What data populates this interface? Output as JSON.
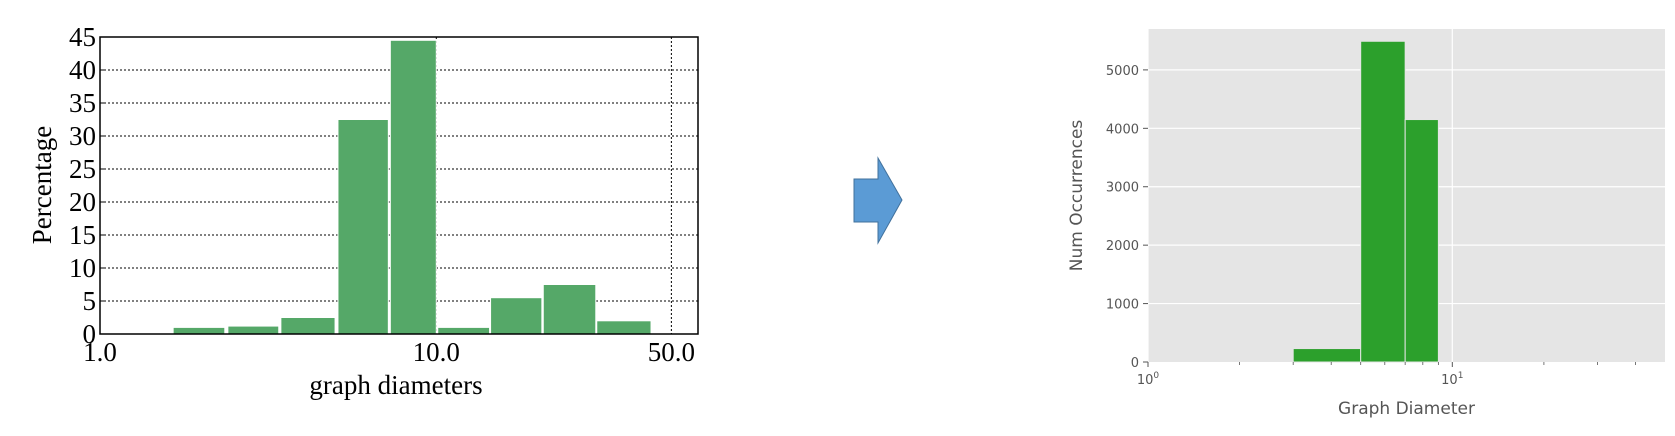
{
  "colors": {
    "left_bar": "#55a868",
    "right_bar": "#2ca02c",
    "arrow_fill": "#5b9bd5",
    "arrow_stroke": "#41719c",
    "right_bg": "#e5e5e5"
  },
  "chart_data": [
    {
      "type": "bar",
      "xscale": "log",
      "xlabel": "graph diameters",
      "ylabel": "Percentage",
      "xlim": [
        1.0,
        60.0
      ],
      "ylim": [
        0,
        45
      ],
      "x_ticks": [
        1.0,
        10.0,
        50.0
      ],
      "x_tick_labels": [
        "1.0",
        "10.0",
        "50.0"
      ],
      "y_ticks": [
        0,
        5,
        10,
        15,
        20,
        25,
        30,
        35,
        40,
        45
      ],
      "y_tick_labels": [
        "0",
        "5",
        "10",
        "15",
        "20",
        "25",
        "30",
        "35",
        "40",
        "45"
      ],
      "grid": "dotted",
      "bars": [
        {
          "x0": 1.65,
          "x1": 2.35,
          "value": 1.0
        },
        {
          "x0": 2.4,
          "x1": 3.4,
          "value": 1.2
        },
        {
          "x0": 3.45,
          "x1": 5.0,
          "value": 2.5
        },
        {
          "x0": 5.1,
          "x1": 7.2,
          "value": 32.5
        },
        {
          "x0": 7.3,
          "x1": 10.0,
          "value": 44.5
        },
        {
          "x0": 10.1,
          "x1": 14.4,
          "value": 1.0
        },
        {
          "x0": 14.5,
          "x1": 20.6,
          "value": 5.5
        },
        {
          "x0": 20.8,
          "x1": 29.8,
          "value": 7.5
        },
        {
          "x0": 30.0,
          "x1": 43.5,
          "value": 2.0
        }
      ]
    },
    {
      "type": "bar",
      "xscale": "log",
      "xlabel": "Graph Diameter",
      "ylabel": "Num Occurrences",
      "xlim": [
        1,
        50
      ],
      "ylim": [
        0,
        5700
      ],
      "x_ticks": [
        1,
        10
      ],
      "x_tick_labels": [
        {
          "base": "10",
          "exp": "0"
        },
        {
          "base": "10",
          "exp": "1"
        }
      ],
      "y_ticks": [
        0,
        1000,
        2000,
        3000,
        4000,
        5000
      ],
      "y_tick_labels": [
        "0",
        "1000",
        "2000",
        "3000",
        "4000",
        "5000"
      ],
      "grid": "solid-white",
      "bars": [
        {
          "x0": 3.0,
          "x1": 5.0,
          "value": 230
        },
        {
          "x0": 5.0,
          "x1": 7.0,
          "value": 5490
        },
        {
          "x0": 7.0,
          "x1": 9.0,
          "value": 4150
        }
      ]
    }
  ]
}
